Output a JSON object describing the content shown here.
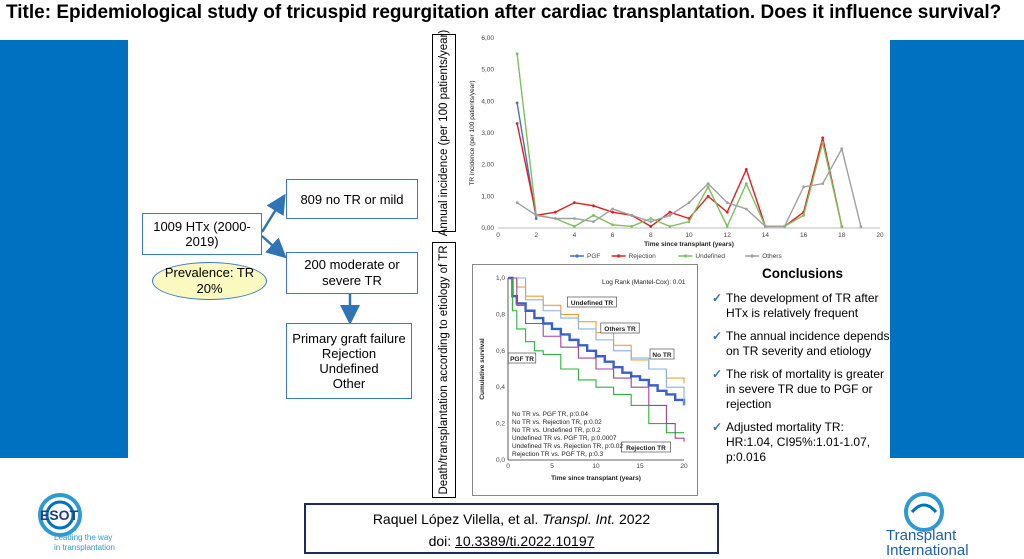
{
  "title": "Title: Epidemiological study of tricuspid regurgitation after cardiac transplantation. Does it influence survival?",
  "flow": {
    "htx": "1009 HTx (2000-2019)",
    "no_tr": "809 no TR or mild",
    "moderate": [
      "200 moderate or",
      "severe TR"
    ],
    "prevalence": [
      "Prevalence: TR",
      "20%"
    ],
    "etiologies": [
      "Primary graft failure",
      "Rejection",
      "Undefined",
      "Other"
    ]
  },
  "side_labels": {
    "top": "Annual incidence (per 100 patients/year)",
    "bottom": "Death/transplantation according to etiology of TR"
  },
  "chart_data": [
    {
      "type": "line",
      "title": "",
      "xlabel": "Time since transplant  (years)",
      "ylabel": "TR incidence  (per 100 patients/year)",
      "xlim": [
        0,
        20
      ],
      "ylim": [
        0,
        6
      ],
      "x_ticks": [
        "0",
        "2",
        "4",
        "6",
        "8",
        "10",
        "12",
        "14",
        "16",
        "18",
        "20"
      ],
      "y_ticks": [
        "0,00",
        "1,00",
        "2,00",
        "3,00",
        "4,00",
        "5,00",
        "6,00"
      ],
      "legend_position": "bottom",
      "series": [
        {
          "name": "PGF",
          "color": "#4472c4",
          "x": [
            1,
            2
          ],
          "y": [
            3.95,
            0.3
          ]
        },
        {
          "name": "Rejection",
          "color": "#e02020",
          "x": [
            1,
            2,
            3,
            4,
            5,
            6,
            7,
            8,
            9,
            10,
            11,
            12,
            13,
            14,
            15,
            16,
            17,
            18
          ],
          "y": [
            3.3,
            0.4,
            0.5,
            0.8,
            0.7,
            0.5,
            0.4,
            0.05,
            0.5,
            0.3,
            1.0,
            0.5,
            1.85,
            0.05,
            0.05,
            0.5,
            2.85,
            0.05
          ]
        },
        {
          "name": "Undefined",
          "color": "#7fbf5f",
          "x": [
            1,
            2,
            3,
            4,
            5,
            6,
            7,
            8,
            9,
            10,
            11,
            12,
            13,
            14,
            15,
            16,
            17,
            18
          ],
          "y": [
            5.5,
            0.4,
            0.3,
            0.05,
            0.4,
            0.1,
            0.05,
            0.3,
            0.05,
            0.2,
            1.3,
            0.05,
            1.4,
            0.05,
            0.05,
            0.4,
            2.7,
            0.05
          ]
        },
        {
          "name": "Others",
          "color": "#a0a0a0",
          "x": [
            1,
            2,
            3,
            4,
            5,
            6,
            7,
            8,
            9,
            10,
            11,
            12,
            13,
            14,
            15,
            16,
            17,
            18,
            19
          ],
          "y": [
            0.8,
            0.4,
            0.3,
            0.3,
            0.2,
            0.6,
            0.4,
            0.2,
            0.4,
            0.8,
            1.4,
            0.8,
            0.6,
            0.05,
            0.05,
            1.3,
            1.4,
            2.5,
            0.05
          ]
        }
      ]
    },
    {
      "type": "line",
      "title": "",
      "xlabel": "Time since transplant (years)",
      "ylabel": "Cumulative survival",
      "xlim": [
        0,
        20
      ],
      "ylim": [
        0,
        1
      ],
      "x_ticks": [
        "0",
        "5",
        "10",
        "15",
        "20"
      ],
      "y_ticks": [
        "0,0",
        "0,2",
        "0,4",
        "0,6",
        "0,8",
        "1,0"
      ],
      "annotation_logrank": "Log Rank (Mantel-Cox): 0.01",
      "labels": [
        "Undefined TR",
        "Others TR",
        "No TR",
        "PGF TR",
        "Rejection TR"
      ],
      "pvalues": [
        "No TR vs. PGF TR, p:0.04",
        "No TR vs. Rejection TR, p:0.02",
        "No TR vs. Undefined TR, p:0.2",
        "Undefined TR vs. PGF TR, p:0.0007",
        "Undefined TR vs. Rejection TR, p:0.02",
        "Rejection TR vs. PGF TR, p:0.3"
      ],
      "series": [
        {
          "name": "No TR",
          "color": "#3a5fcd",
          "x": [
            0,
            0.5,
            1,
            2,
            3,
            4,
            5,
            6,
            7,
            8,
            9,
            10,
            11,
            12,
            13,
            14,
            15,
            16,
            17,
            18,
            19,
            20
          ],
          "y": [
            1.0,
            0.9,
            0.86,
            0.82,
            0.78,
            0.75,
            0.72,
            0.69,
            0.66,
            0.63,
            0.6,
            0.57,
            0.54,
            0.51,
            0.48,
            0.46,
            0.44,
            0.41,
            0.38,
            0.36,
            0.33,
            0.3
          ]
        },
        {
          "name": "Undefined TR",
          "color": "#f0a030",
          "x": [
            0,
            1,
            2,
            4,
            6,
            8,
            10,
            12,
            14,
            16,
            18,
            20
          ],
          "y": [
            1.0,
            0.95,
            0.9,
            0.85,
            0.8,
            0.76,
            0.7,
            0.63,
            0.55,
            0.5,
            0.45,
            0.42
          ]
        },
        {
          "name": "Others TR",
          "color": "#8ab0e0",
          "x": [
            0,
            2,
            4,
            6,
            8,
            10,
            12,
            14,
            16,
            18,
            20
          ],
          "y": [
            1.0,
            0.88,
            0.82,
            0.78,
            0.72,
            0.66,
            0.6,
            0.56,
            0.5,
            0.4,
            0.3
          ]
        },
        {
          "name": "PGF TR",
          "color": "#30b040",
          "x": [
            0,
            0.5,
            1,
            2,
            3,
            4,
            6,
            8,
            10,
            12,
            14,
            16,
            18,
            20
          ],
          "y": [
            1.0,
            0.82,
            0.72,
            0.65,
            0.6,
            0.58,
            0.5,
            0.44,
            0.4,
            0.36,
            0.3,
            0.2,
            0.15,
            0.15
          ]
        },
        {
          "name": "Rejection TR",
          "color": "#a040a0",
          "x": [
            0,
            1,
            2,
            4,
            6,
            8,
            10,
            12,
            14,
            16,
            18,
            19,
            20
          ],
          "y": [
            1.0,
            0.85,
            0.75,
            0.68,
            0.62,
            0.56,
            0.5,
            0.45,
            0.4,
            0.3,
            0.2,
            0.12,
            0.1
          ]
        }
      ]
    }
  ],
  "conclusions": {
    "title": "Conclusions",
    "items": [
      "The development of TR after HTx is relatively frequent",
      "The annual incidence depends on TR severity and etiology",
      "The risk of mortality is greater in severe TR due to PGF or rejection",
      "Adjusted mortality TR: HR:1.04, CI95%:1.01-1.07, p:0.016"
    ]
  },
  "citation": {
    "authors": "Raquel López Vilella, et al.",
    "journal": "Transpl. Int.",
    "year": "2022",
    "doi_label": "doi:",
    "doi": "10.3389/ti.2022.10197"
  },
  "logos": {
    "esot_name": "ESOT",
    "esot_tagline": [
      "Leading the way",
      "in transplantation"
    ],
    "ti_name": [
      "Transplant",
      "International"
    ]
  },
  "colors": {
    "sidebar": "#0070c0",
    "box_border": "#3a78c9",
    "ellipse_fill": "#fafac0"
  }
}
